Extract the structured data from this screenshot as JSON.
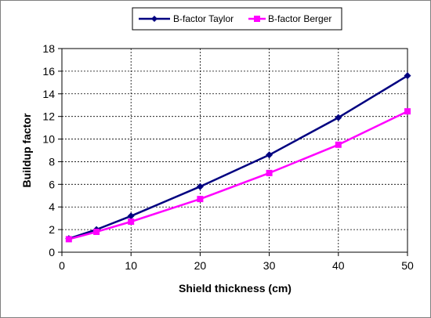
{
  "chart_data": {
    "type": "line",
    "title": "",
    "xlabel": "Shield thickness (cm)",
    "ylabel": "Buildup factor",
    "xlim": [
      0,
      50
    ],
    "ylim": [
      0,
      18
    ],
    "x_ticks": [
      0,
      10,
      20,
      30,
      40,
      50
    ],
    "y_ticks": [
      0,
      2,
      4,
      6,
      8,
      10,
      12,
      14,
      16,
      18
    ],
    "grid": true,
    "legend_position": "top",
    "series": [
      {
        "name": "B-factor Taylor",
        "color": "#000080",
        "marker": "diamond",
        "x": [
          1,
          5,
          10,
          20,
          30,
          40,
          50
        ],
        "y": [
          1.2,
          2.0,
          3.2,
          5.8,
          8.6,
          11.9,
          15.6
        ]
      },
      {
        "name": "B-factor Berger",
        "color": "#ff00ff",
        "marker": "square",
        "x": [
          1,
          5,
          10,
          20,
          30,
          40,
          50
        ],
        "y": [
          1.15,
          1.8,
          2.7,
          4.7,
          7.0,
          9.5,
          12.45
        ]
      }
    ]
  }
}
